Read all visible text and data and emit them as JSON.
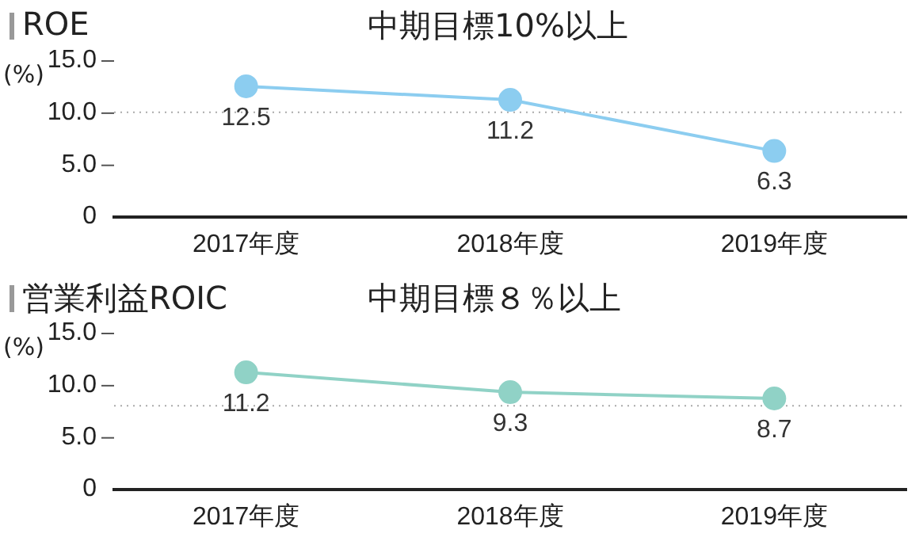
{
  "chart_data": [
    {
      "type": "line",
      "title": "ROE",
      "subtitle": "中期目標10%以上",
      "ylabel": "(%)",
      "categories": [
        "2017年度",
        "2018年度",
        "2019年度"
      ],
      "series": [
        {
          "color": "#8ccdf0",
          "values": [
            12.5,
            11.2,
            6.3
          ]
        }
      ],
      "ylim": [
        0,
        15
      ],
      "yticks": [
        {
          "value": 0,
          "label": "0"
        },
        {
          "value": 5,
          "label": "5.0"
        },
        {
          "value": 10,
          "label": "10.0"
        },
        {
          "value": 15,
          "label": "15.0"
        }
      ],
      "ref_lines": [
        {
          "axis": "y",
          "value": 10,
          "color": "#aaaaaa",
          "line_style": "dotted"
        }
      ],
      "data_labels": true,
      "marker": "circle",
      "line_style": "solid",
      "legend": false
    },
    {
      "type": "line",
      "title": "営業利益ROIC",
      "subtitle": "中期目標８％以上",
      "ylabel": "(%)",
      "categories": [
        "2017年度",
        "2018年度",
        "2019年度"
      ],
      "series": [
        {
          "color": "#90d2c6",
          "values": [
            11.2,
            9.3,
            8.7
          ]
        }
      ],
      "ylim": [
        0,
        15
      ],
      "yticks": [
        {
          "value": 0,
          "label": "0"
        },
        {
          "value": 5,
          "label": "5.0"
        },
        {
          "value": 10,
          "label": "10.0"
        },
        {
          "value": 15,
          "label": "15.0"
        }
      ],
      "ref_lines": [
        {
          "axis": "y",
          "value": 8,
          "color": "#aaaaaa",
          "line_style": "dotted"
        }
      ],
      "data_labels": true,
      "marker": "circle",
      "line_style": "solid",
      "legend": false
    }
  ]
}
